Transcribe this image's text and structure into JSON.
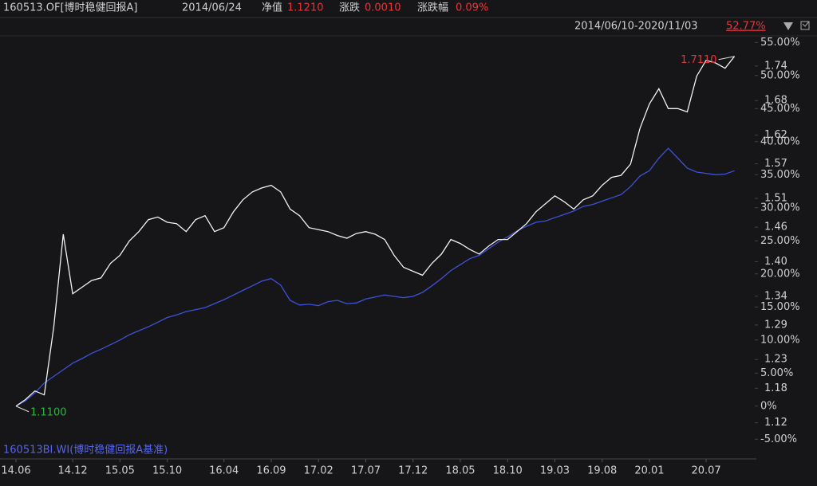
{
  "chart_data": {
    "type": "line",
    "header": {
      "date": "2014/06/24",
      "info": [
        {
          "label": "净值",
          "value": "1.1210"
        },
        {
          "label": "涨跌",
          "value": "0.0010"
        },
        {
          "label": "涨跌幅",
          "value": "0.09%"
        }
      ],
      "range": "2014/06/10-2020/11/03",
      "range_return": "52.77%"
    },
    "categories": [
      "14.06",
      null,
      null,
      null,
      null,
      null,
      "14.12",
      null,
      null,
      null,
      null,
      "15.05",
      null,
      null,
      null,
      null,
      "15.10",
      null,
      null,
      null,
      null,
      null,
      "16.04",
      null,
      null,
      null,
      null,
      "16.09",
      null,
      null,
      null,
      null,
      "17.02",
      null,
      null,
      null,
      null,
      "17.07",
      null,
      null,
      null,
      null,
      "17.12",
      null,
      null,
      null,
      null,
      "18.05",
      null,
      null,
      null,
      null,
      "18.10",
      null,
      null,
      null,
      null,
      "19.03",
      null,
      null,
      null,
      null,
      "19.08",
      null,
      null,
      null,
      null,
      "20.01",
      null,
      null,
      null,
      null,
      null,
      "20.07",
      null,
      null,
      null
    ],
    "series": [
      {
        "name": "160513.OF[博时稳健回报A]",
        "color": "#f2f2f2",
        "values": [
          0,
          1,
          2.3,
          1.7,
          12,
          26,
          17,
          18,
          19,
          19.4,
          21.6,
          22.8,
          25,
          26.4,
          28.2,
          28.6,
          27.8,
          27.6,
          26.4,
          28.2,
          28.8,
          26.4,
          27,
          29.4,
          31.2,
          32.4,
          33,
          33.4,
          32.4,
          29.8,
          28.8,
          27,
          26.7,
          26.4,
          25.8,
          25.4,
          26.1,
          26.4,
          26,
          25.2,
          22.8,
          21,
          20.4,
          19.8,
          21.6,
          23,
          25.2,
          24.6,
          23.7,
          23,
          24.2,
          25.2,
          25.2,
          26.4,
          27.6,
          29.4,
          30.6,
          31.8,
          30.9,
          29.8,
          31.2,
          31.8,
          33.4,
          34.6,
          34.9,
          36.6,
          42,
          45.7,
          48,
          45,
          45,
          44.5,
          49.9,
          52.3,
          51.9,
          51.1,
          52.9
        ]
      },
      {
        "name": "160513BI.WI(博时稳健回报A基准)",
        "color": "#3d52d8",
        "values": [
          0,
          0.8,
          2,
          3.5,
          4.5,
          5.5,
          6.5,
          7.2,
          8,
          8.6,
          9.3,
          10,
          10.8,
          11.4,
          12,
          12.7,
          13.4,
          13.8,
          14.3,
          14.6,
          14.9,
          15.5,
          16.1,
          16.8,
          17.5,
          18.2,
          18.9,
          19.3,
          18.3,
          16,
          15.3,
          15.4,
          15.2,
          15.8,
          16,
          15.5,
          15.6,
          16.2,
          16.5,
          16.8,
          16.6,
          16.4,
          16.6,
          17.2,
          18.2,
          19.3,
          20.5,
          21.4,
          22.3,
          22.8,
          23.8,
          24.8,
          25.6,
          26.5,
          27.2,
          27.8,
          28,
          28.5,
          29,
          29.5,
          30.2,
          30.5,
          31,
          31.5,
          32,
          33.2,
          34.8,
          35.6,
          37.5,
          39,
          37.5,
          36,
          35.4,
          35.2,
          35,
          35.1,
          35.6
        ]
      }
    ],
    "annotations": [
      {
        "text": "1.7110",
        "color": "#e8343a"
      },
      {
        "text": "1.1100",
        "color": "#2fb344"
      }
    ],
    "ylim": [
      -7.5,
      56
    ],
    "yticks": [
      {
        "value": -5,
        "label": "-5.00%"
      },
      {
        "value": 0,
        "label": "0%"
      },
      {
        "value": 5,
        "label": "5.00%"
      },
      {
        "value": 10,
        "label": "10.00%"
      },
      {
        "value": 15,
        "label": "15.00%"
      },
      {
        "value": 20,
        "label": "20.00%"
      },
      {
        "value": 25,
        "label": "25.00%"
      },
      {
        "value": 30,
        "label": "30.00%"
      },
      {
        "value": 35,
        "label": "35.00%"
      },
      {
        "value": 40,
        "label": "40.00%"
      },
      {
        "value": 45,
        "label": "45.00%"
      },
      {
        "value": 50,
        "label": "50.00%"
      },
      {
        "value": 55,
        "label": "55.00%"
      }
    ],
    "y2lim": [
      1.0628,
      1.7924
    ],
    "y2ticks": [
      1.12,
      1.18,
      1.23,
      1.29,
      1.34,
      {
        "value": 1.4,
        "label": "1.40"
      },
      1.46,
      1.51,
      1.57,
      1.62,
      1.68,
      1.74
    ],
    "grid": false
  }
}
